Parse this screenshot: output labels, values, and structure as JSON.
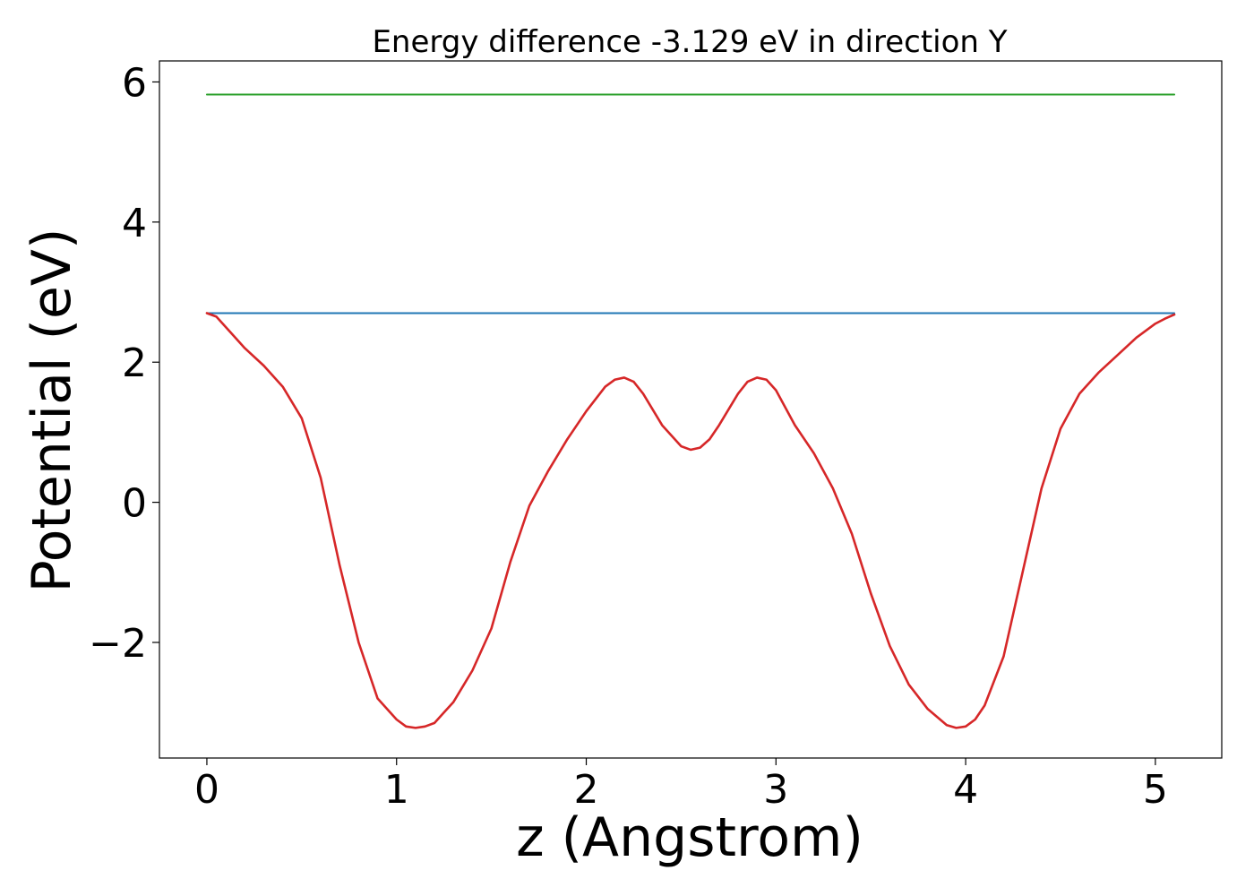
{
  "chart_data": {
    "type": "line",
    "title": "Energy difference -3.129 eV in direction Y",
    "xlabel": "z (Angstrom)",
    "ylabel": "Potential (eV)",
    "xlim": [
      -0.25,
      5.35
    ],
    "ylim": [
      -3.65,
      6.3
    ],
    "xticks": [
      0,
      1,
      2,
      3,
      4,
      5
    ],
    "yticks": [
      -2,
      0,
      2,
      4,
      6
    ],
    "xtick_labels": [
      "0",
      "1",
      "2",
      "3",
      "4",
      "5"
    ],
    "ytick_labels": [
      "−2",
      "0",
      "2",
      "4",
      "6"
    ],
    "grid": false,
    "series": [
      {
        "color": "#2ca02c",
        "x": [
          0,
          5.1
        ],
        "y": [
          5.82,
          5.82
        ]
      },
      {
        "color": "#1f77b4",
        "x": [
          0,
          5.1
        ],
        "y": [
          2.7,
          2.7
        ]
      },
      {
        "color": "#d62728",
        "x": [
          0,
          0.05,
          0.1,
          0.2,
          0.3,
          0.4,
          0.5,
          0.6,
          0.7,
          0.8,
          0.9,
          1.0,
          1.05,
          1.1,
          1.15,
          1.2,
          1.25,
          1.3,
          1.4,
          1.5,
          1.6,
          1.7,
          1.8,
          1.9,
          2.0,
          2.1,
          2.15,
          2.2,
          2.25,
          2.3,
          2.4,
          2.5,
          2.55,
          2.6,
          2.65,
          2.7,
          2.8,
          2.85,
          2.9,
          2.95,
          3.0,
          3.1,
          3.2,
          3.3,
          3.4,
          3.5,
          3.6,
          3.7,
          3.8,
          3.9,
          3.95,
          4.0,
          4.05,
          4.1,
          4.2,
          4.3,
          4.4,
          4.5,
          4.6,
          4.7,
          4.8,
          4.9,
          5.0,
          5.05,
          5.1
        ],
        "y": [
          2.7,
          2.65,
          2.5,
          2.2,
          1.95,
          1.65,
          1.2,
          0.35,
          -0.9,
          -2.0,
          -2.8,
          -3.1,
          -3.2,
          -3.22,
          -3.2,
          -3.15,
          -3.0,
          -2.85,
          -2.4,
          -1.8,
          -0.85,
          -0.05,
          0.45,
          0.9,
          1.3,
          1.65,
          1.75,
          1.78,
          1.72,
          1.55,
          1.1,
          0.8,
          0.75,
          0.78,
          0.9,
          1.1,
          1.55,
          1.72,
          1.78,
          1.75,
          1.6,
          1.1,
          0.7,
          0.2,
          -0.45,
          -1.3,
          -2.05,
          -2.6,
          -2.95,
          -3.18,
          -3.22,
          -3.2,
          -3.1,
          -2.9,
          -2.2,
          -1.0,
          0.2,
          1.05,
          1.55,
          1.85,
          2.1,
          2.35,
          2.55,
          2.62,
          2.68
        ]
      }
    ]
  }
}
